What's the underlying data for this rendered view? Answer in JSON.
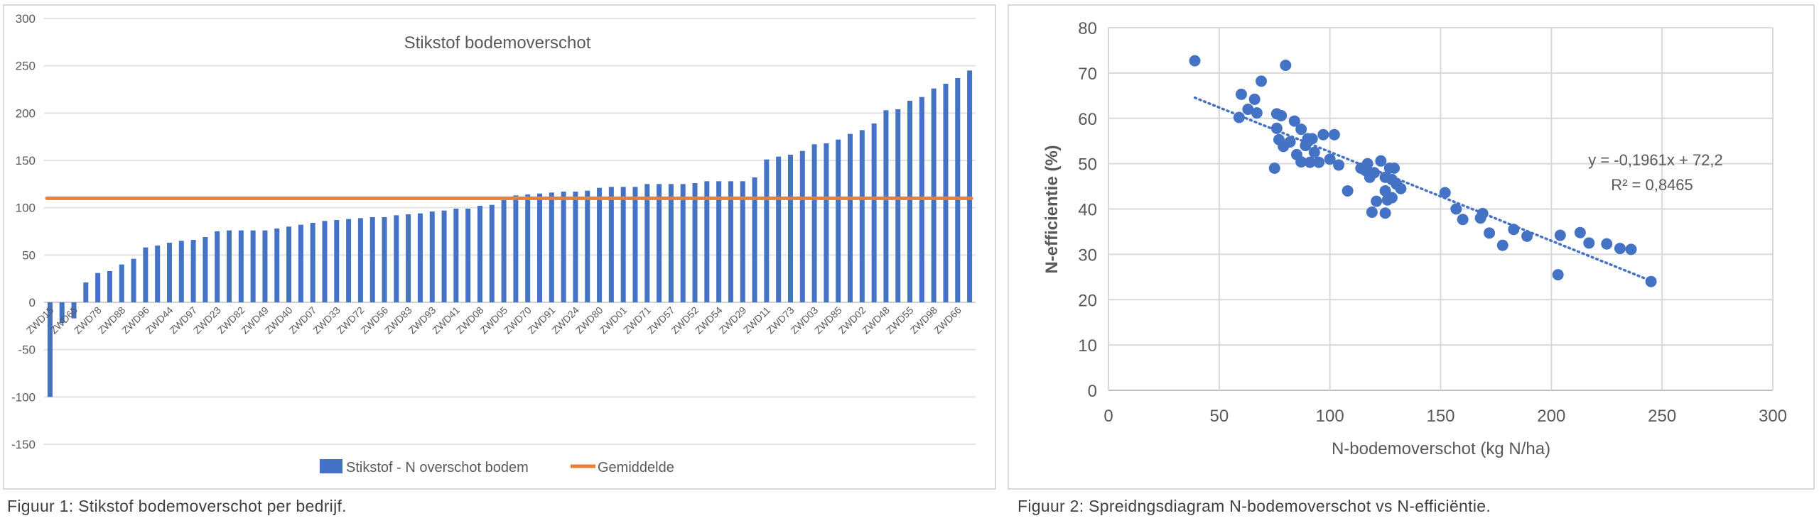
{
  "chart_data": [
    {
      "type": "bar",
      "title": "Stikstof bodemoverschot",
      "xlabel": "",
      "ylabel": "",
      "ylim": [
        -150,
        300
      ],
      "yticks": [
        300,
        250,
        200,
        150,
        100,
        50,
        0,
        -50,
        -100,
        -150
      ],
      "grid": true,
      "legend_position": "bottom",
      "category_labels_every_other_bar": [
        "ZWD15",
        "ZWD65",
        "ZWD78",
        "ZWD88",
        "ZWD96",
        "ZWD44",
        "ZWD97",
        "ZWD23",
        "ZWD82",
        "ZWD49",
        "ZWD40",
        "ZWD07",
        "ZWD33",
        "ZWD72",
        "ZWD56",
        "ZWD83",
        "ZWD93",
        "ZWD41",
        "ZWD08",
        "ZWD05",
        "ZWD70",
        "ZWD91",
        "ZWD24",
        "ZWD80",
        "ZWD01",
        "ZWD71",
        "ZWD57",
        "ZWD52",
        "ZWD54",
        "ZWD29",
        "ZWD11",
        "ZWD73",
        "ZWD03",
        "ZWD85",
        "ZWD02",
        "ZWD48",
        "ZWD55",
        "ZWD98",
        "ZWD66"
      ],
      "series": [
        {
          "name": "Stikstof - N overschot bodem",
          "kind": "bar",
          "color": "#4472c4",
          "values": [
            -100,
            -22,
            -17,
            21,
            31,
            33,
            40,
            46,
            58,
            60,
            63,
            65,
            66,
            69,
            75,
            76,
            76,
            76,
            76,
            78,
            80,
            82,
            84,
            86,
            87,
            88,
            89,
            90,
            90,
            92,
            93,
            94,
            96,
            97,
            99,
            99,
            102,
            103,
            108,
            113,
            114,
            115,
            116,
            117,
            117,
            118,
            121,
            122,
            122,
            122,
            125,
            125,
            125,
            125,
            126,
            128,
            128,
            128,
            128,
            132,
            151,
            154,
            156,
            160,
            167,
            168,
            172,
            178,
            182,
            189,
            203,
            204,
            213,
            217,
            226,
            231,
            237,
            245
          ]
        },
        {
          "name": "Gemiddelde",
          "kind": "line",
          "color": "#ed7d31",
          "value": 110
        }
      ]
    },
    {
      "type": "scatter",
      "title": "",
      "xlabel": "N-bodemoverschot (kg N/ha)",
      "ylabel": "N-efficientie (%)",
      "xlim": [
        0,
        300
      ],
      "ylim": [
        0,
        80
      ],
      "xticks": [
        0,
        50,
        100,
        150,
        200,
        250,
        300
      ],
      "yticks": [
        0,
        10,
        20,
        30,
        40,
        50,
        60,
        70,
        80
      ],
      "grid": true,
      "color": "#4472c4",
      "points": [
        [
          39,
          72.7
        ],
        [
          80,
          71.7
        ],
        [
          69,
          68.2
        ],
        [
          60,
          65.3
        ],
        [
          66,
          64.2
        ],
        [
          63,
          62
        ],
        [
          67,
          61.2
        ],
        [
          59,
          60.2
        ],
        [
          76,
          61
        ],
        [
          78,
          60.6
        ],
        [
          84,
          59.4
        ],
        [
          87,
          57.6
        ],
        [
          76,
          57.8
        ],
        [
          97,
          56.4
        ],
        [
          102,
          56.4
        ],
        [
          77,
          55.3
        ],
        [
          82,
          54.8
        ],
        [
          79,
          53.8
        ],
        [
          90,
          55.5
        ],
        [
          92,
          55.5
        ],
        [
          89,
          54
        ],
        [
          93,
          52.5
        ],
        [
          85,
          52
        ],
        [
          87,
          50.4
        ],
        [
          91,
          50.3
        ],
        [
          95,
          50.3
        ],
        [
          100,
          51
        ],
        [
          104,
          49.7
        ],
        [
          75,
          49
        ],
        [
          108,
          44
        ],
        [
          114,
          49
        ],
        [
          116,
          48.5
        ],
        [
          117,
          50
        ],
        [
          118,
          47
        ],
        [
          120,
          48
        ],
        [
          123,
          50.6
        ],
        [
          127,
          49
        ],
        [
          129,
          49
        ],
        [
          125,
          47
        ],
        [
          128,
          46.5
        ],
        [
          130,
          45.5
        ],
        [
          132,
          44.5
        ],
        [
          125,
          44
        ],
        [
          121,
          41.7
        ],
        [
          126,
          42
        ],
        [
          128,
          42.5
        ],
        [
          119,
          39.3
        ],
        [
          125,
          39.1
        ],
        [
          152,
          43.6
        ],
        [
          157,
          40
        ],
        [
          160,
          37.7
        ],
        [
          168,
          38
        ],
        [
          169,
          39
        ],
        [
          172,
          34.7
        ],
        [
          178,
          32
        ],
        [
          183,
          35.5
        ],
        [
          189,
          34
        ],
        [
          204,
          34.2
        ],
        [
          203,
          25.5
        ],
        [
          213,
          34.8
        ],
        [
          217,
          32.5
        ],
        [
          225,
          32.3
        ],
        [
          231,
          31.3
        ],
        [
          236,
          31.1
        ],
        [
          245,
          24
        ]
      ],
      "trendline": {
        "slope": -0.1961,
        "intercept": 72.2,
        "x_range": [
          39,
          245
        ]
      },
      "annotations": [
        "y = -0,1961x + 72,2",
        "R² = 0,8465"
      ]
    }
  ],
  "captions": {
    "fig1": "Figuur 1: Stikstof bodemoverschot per bedrijf.",
    "fig2": "Figuur 2: Spreidngsdiagram N-bodemoverschot vs N-efficiëntie."
  }
}
